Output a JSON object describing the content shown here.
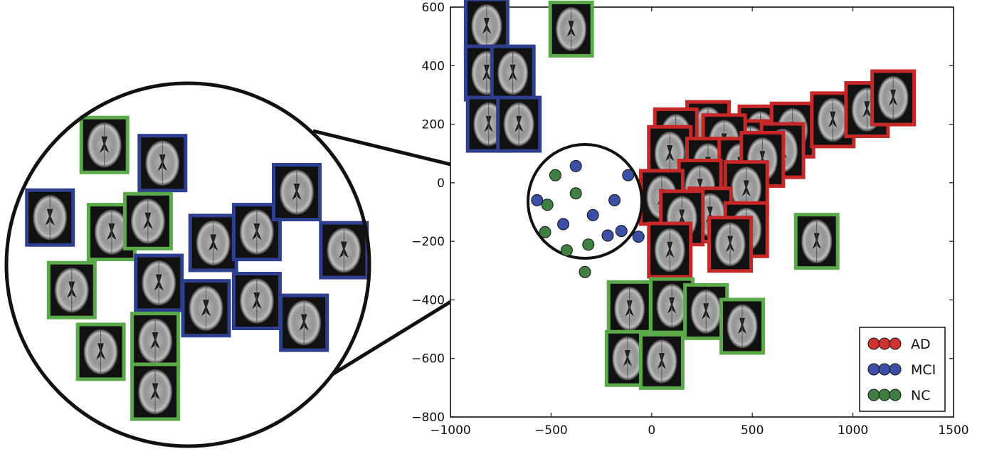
{
  "chart_data": {
    "type": "scatter",
    "xlim": [
      -1000,
      1500
    ],
    "ylim": [
      -800,
      600
    ],
    "xticks": [
      -1000,
      -500,
      0,
      500,
      1000,
      1500
    ],
    "yticks": [
      -800,
      -600,
      -400,
      -200,
      0,
      200,
      400,
      600
    ],
    "xtick_labels": [
      "−1000",
      "−500",
      "0",
      "500",
      "1000",
      "1500"
    ],
    "ytick_labels": [
      "−800",
      "−600",
      "−400",
      "−200",
      "0",
      "200",
      "400",
      "600"
    ],
    "grid": false,
    "legend_position": "bottom-right",
    "colors": {
      "AD": "#c62828",
      "MCI": "#2e3f8f",
      "NC": "#5aaa4a"
    },
    "series": [
      {
        "name": "AD",
        "marker_color": "#d0332f",
        "points": [
          [
            280,
            185
          ],
          [
            120,
            160
          ],
          [
            540,
            170
          ],
          [
            700,
            180
          ],
          [
            900,
            215
          ],
          [
            1070,
            250
          ],
          [
            1200,
            290
          ],
          [
            490,
            120
          ],
          [
            360,
            140
          ],
          [
            650,
            110
          ],
          [
            90,
            100
          ],
          [
            280,
            60
          ],
          [
            440,
            60
          ],
          [
            550,
            80
          ],
          [
            240,
            -15
          ],
          [
            470,
            -20
          ],
          [
            50,
            -50
          ],
          [
            290,
            -110
          ],
          [
            150,
            -120
          ],
          [
            470,
            -160
          ],
          [
            90,
            -230
          ],
          [
            390,
            -210
          ]
        ]
      },
      {
        "name": "MCI",
        "marker_color": "#3a4fa5",
        "points": [
          [
            -820,
            535
          ],
          [
            -820,
            375
          ],
          [
            -690,
            375
          ],
          [
            -810,
            200
          ],
          [
            -660,
            200
          ]
        ]
      },
      {
        "name": "NC",
        "marker_color": "#3f7f42",
        "points": [
          [
            -400,
            525
          ],
          [
            820,
            -200
          ],
          [
            100,
            -420
          ],
          [
            270,
            -440
          ],
          [
            -110,
            -430
          ],
          [
            450,
            -490
          ],
          [
            -120,
            -600
          ],
          [
            50,
            -610
          ]
        ]
      }
    ],
    "zoom_points": [
      {
        "label": "MCI",
        "fx": 0.42,
        "fy": 0.19
      },
      {
        "label": "MCI",
        "fx": 0.88,
        "fy": 0.27
      },
      {
        "label": "MCI",
        "fx": 0.08,
        "fy": 0.49
      },
      {
        "label": "MCI",
        "fx": 0.76,
        "fy": 0.49
      },
      {
        "label": "MCI",
        "fx": 0.57,
        "fy": 0.62
      },
      {
        "label": "MCI",
        "fx": 0.31,
        "fy": 0.7
      },
      {
        "label": "MCI",
        "fx": 0.82,
        "fy": 0.76
      },
      {
        "label": "MCI",
        "fx": 0.7,
        "fy": 0.8
      },
      {
        "label": "MCI",
        "fx": 0.97,
        "fy": 0.81
      },
      {
        "label": "NC",
        "fx": 0.24,
        "fy": 0.27
      },
      {
        "label": "NC",
        "fx": 0.42,
        "fy": 0.43
      },
      {
        "label": "NC",
        "fx": 0.17,
        "fy": 0.53
      },
      {
        "label": "NC",
        "fx": 0.15,
        "fy": 0.77
      },
      {
        "label": "NC",
        "fx": 0.34,
        "fy": 0.93
      },
      {
        "label": "NC",
        "fx": 0.53,
        "fy": 0.88
      },
      {
        "label": "NC",
        "fx": 0.5,
        "fy": 1.12
      }
    ],
    "inset_thumbnails": [
      {
        "label": "NC",
        "fx": 0.27,
        "fy": 0.17
      },
      {
        "label": "MCI",
        "fx": 0.43,
        "fy": 0.22
      },
      {
        "label": "MCI",
        "fx": 0.12,
        "fy": 0.37
      },
      {
        "label": "NC",
        "fx": 0.29,
        "fy": 0.41
      },
      {
        "label": "NC",
        "fx": 0.39,
        "fy": 0.38
      },
      {
        "label": "MCI",
        "fx": 0.57,
        "fy": 0.44
      },
      {
        "label": "MCI",
        "fx": 0.69,
        "fy": 0.41
      },
      {
        "label": "MCI",
        "fx": 0.8,
        "fy": 0.3
      },
      {
        "label": "MCI",
        "fx": 0.93,
        "fy": 0.46
      },
      {
        "label": "NC",
        "fx": 0.18,
        "fy": 0.57
      },
      {
        "label": "MCI",
        "fx": 0.42,
        "fy": 0.55
      },
      {
        "label": "MCI",
        "fx": 0.69,
        "fy": 0.6
      },
      {
        "label": "MCI",
        "fx": 0.55,
        "fy": 0.62
      },
      {
        "label": "NC",
        "fx": 0.26,
        "fy": 0.74
      },
      {
        "label": "NC",
        "fx": 0.41,
        "fy": 0.71
      },
      {
        "label": "MCI",
        "fx": 0.82,
        "fy": 0.66
      },
      {
        "label": "NC",
        "fx": 0.41,
        "fy": 0.85
      }
    ],
    "legend": [
      {
        "label": "AD",
        "color": "#d0332f"
      },
      {
        "label": "MCI",
        "color": "#3a4fa5"
      },
      {
        "label": "NC",
        "color": "#3f7f42"
      }
    ]
  }
}
